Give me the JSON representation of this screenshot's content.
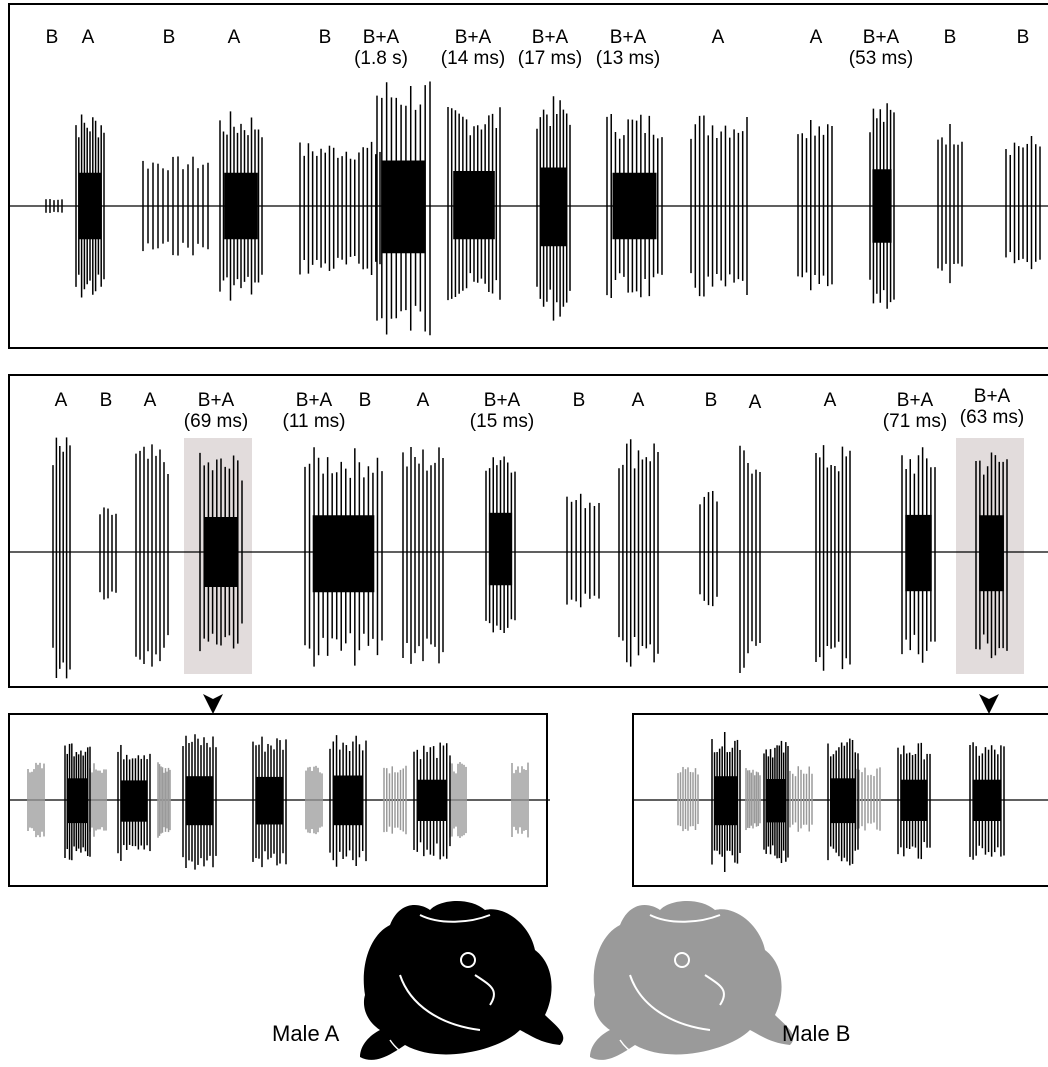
{
  "colors": {
    "male_a": "#000000",
    "male_b": "#9a9a9a",
    "highlight": "#e2dcdc"
  },
  "panel1": {
    "labels": [
      {
        "code": "B",
        "note": ""
      },
      {
        "code": "A",
        "note": ""
      },
      {
        "code": "B",
        "note": ""
      },
      {
        "code": "A",
        "note": ""
      },
      {
        "code": "B",
        "note": ""
      },
      {
        "code": "B+A",
        "note": "(1.8 s)"
      },
      {
        "code": "B+A",
        "note": "(14 ms)"
      },
      {
        "code": "B+A",
        "note": "(17 ms)"
      },
      {
        "code": "B+A",
        "note": "(13 ms)"
      },
      {
        "code": "A",
        "note": ""
      },
      {
        "code": "A",
        "note": ""
      },
      {
        "code": "B+A",
        "note": "(53 ms)"
      },
      {
        "code": "B",
        "note": ""
      },
      {
        "code": "B",
        "note": ""
      }
    ]
  },
  "panel2": {
    "labels": [
      {
        "code": "A",
        "note": ""
      },
      {
        "code": "B",
        "note": ""
      },
      {
        "code": "A",
        "note": ""
      },
      {
        "code": "B+A",
        "note": "(69 ms)"
      },
      {
        "code": "B+A",
        "note": "(11 ms)"
      },
      {
        "code": "B",
        "note": ""
      },
      {
        "code": "A",
        "note": ""
      },
      {
        "code": "B+A",
        "note": "(15 ms)"
      },
      {
        "code": "B",
        "note": ""
      },
      {
        "code": "A",
        "note": ""
      },
      {
        "code": "B",
        "note": ""
      },
      {
        "code": "A",
        "note": ""
      },
      {
        "code": "A",
        "note": ""
      },
      {
        "code": "B+A",
        "note": "(71 ms)"
      },
      {
        "code": "B+A",
        "note": "(63 ms)"
      }
    ]
  },
  "legend": {
    "male_a": "Male A",
    "male_b": "Male B"
  },
  "icons": [
    "arrowhead-down-icon",
    "frog-icon"
  ]
}
